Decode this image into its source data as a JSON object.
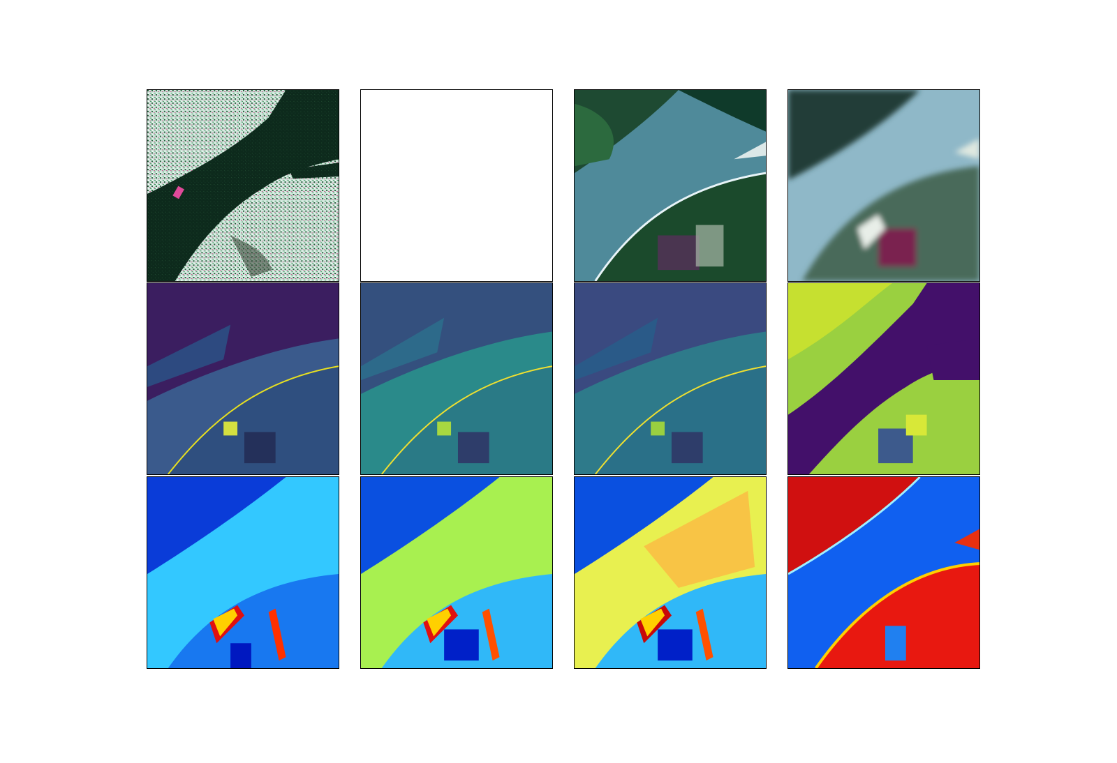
{
  "figure": {
    "rows": 3,
    "columns": 4,
    "panels": [
      {
        "row": 1,
        "col": 1,
        "colormap": "sar-composite",
        "content": "image"
      },
      {
        "row": 1,
        "col": 2,
        "colormap": "none",
        "content": "blank"
      },
      {
        "row": 1,
        "col": 3,
        "colormap": "true-color",
        "content": "image"
      },
      {
        "row": 1,
        "col": 4,
        "colormap": "true-color-blurred",
        "content": "image"
      },
      {
        "row": 2,
        "col": 1,
        "colormap": "viridis",
        "content": "image"
      },
      {
        "row": 2,
        "col": 2,
        "colormap": "viridis",
        "content": "image"
      },
      {
        "row": 2,
        "col": 3,
        "colormap": "viridis",
        "content": "image"
      },
      {
        "row": 2,
        "col": 4,
        "colormap": "viridis",
        "content": "image"
      },
      {
        "row": 3,
        "col": 1,
        "colormap": "jet",
        "content": "image"
      },
      {
        "row": 3,
        "col": 2,
        "colormap": "jet",
        "content": "image"
      },
      {
        "row": 3,
        "col": 3,
        "colormap": "jet",
        "content": "image"
      },
      {
        "row": 3,
        "col": 4,
        "colormap": "jet",
        "content": "image"
      }
    ]
  },
  "colors": {
    "frame": "#000000",
    "background": "#ffffff"
  }
}
